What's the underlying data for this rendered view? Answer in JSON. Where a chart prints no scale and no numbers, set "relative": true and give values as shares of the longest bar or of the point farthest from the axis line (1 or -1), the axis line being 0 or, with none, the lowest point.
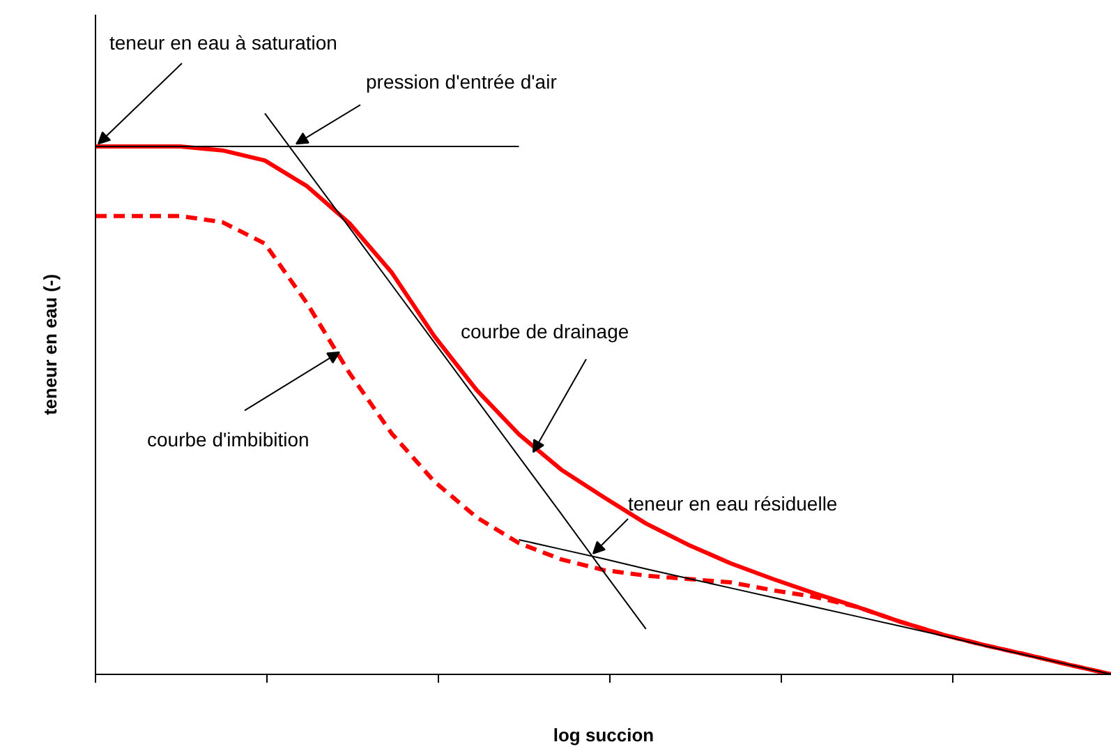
{
  "chart_data": {
    "type": "line",
    "relative": true,
    "xlabel": "log succion",
    "ylabel": "teneur en eau (-)",
    "categories": [
      null,
      null,
      null,
      null,
      null,
      null,
      null,
      null,
      null,
      null,
      null,
      null,
      null,
      null,
      null,
      null,
      null,
      null,
      null,
      null,
      null,
      null,
      null,
      null,
      null
    ],
    "series": [
      {
        "color": "#ff0000",
        "line_style": "solid",
        "values": [
          0.941,
          0.941,
          0.941,
          0.934,
          0.916,
          0.87,
          0.804,
          0.716,
          0.603,
          0.507,
          0.428,
          0.365,
          0.316,
          0.269,
          0.231,
          0.198,
          0.17,
          0.144,
          0.12,
          0.094,
          0.071,
          0.052,
          0.035,
          0.017,
          0
        ]
      },
      {
        "color": "#ff0000",
        "line_style": "dashed",
        "values": [
          0.817,
          0.817,
          0.817,
          0.806,
          0.768,
          0.661,
          0.537,
          0.429,
          0.344,
          0.28,
          0.234,
          0.205,
          0.186,
          0.176,
          0.17,
          0.164,
          0.15,
          0.138,
          0.12,
          0.094,
          0.071,
          0.052,
          0.035,
          0.017,
          0
        ]
      },
      {
        "color": "#000000",
        "line_style": "solid",
        "values": [
          0.941,
          0.941,
          0.941,
          0.941,
          0.941,
          0.941,
          0.941,
          0.941,
          0.941,
          0.941,
          0.941,
          null,
          null,
          null,
          null,
          null,
          null,
          null,
          null,
          null,
          null,
          null,
          null,
          null,
          null
        ]
      },
      {
        "color": "#000000",
        "line_style": "solid",
        "values": [
          null,
          null,
          null,
          null,
          1.0,
          0.898,
          0.796,
          0.694,
          0.592,
          0.49,
          0.388,
          0.286,
          0.183,
          0.081,
          null,
          null,
          null,
          null,
          null,
          null,
          null,
          null,
          null,
          null,
          null
        ]
      },
      {
        "color": "#000000",
        "line_style": "solid",
        "values": [
          null,
          null,
          null,
          null,
          null,
          null,
          null,
          null,
          null,
          null,
          0.24,
          0.223,
          0.206,
          0.188,
          0.171,
          0.154,
          0.137,
          0.12,
          0.103,
          0.086,
          0.069,
          0.051,
          0.034,
          0.017,
          0
        ]
      }
    ],
    "annotations": [
      "teneur en eau à saturation",
      "pression d'entrée d'air",
      "courbe de drainage",
      "courbe d'imbibition",
      "teneur en eau résiduelle"
    ]
  }
}
